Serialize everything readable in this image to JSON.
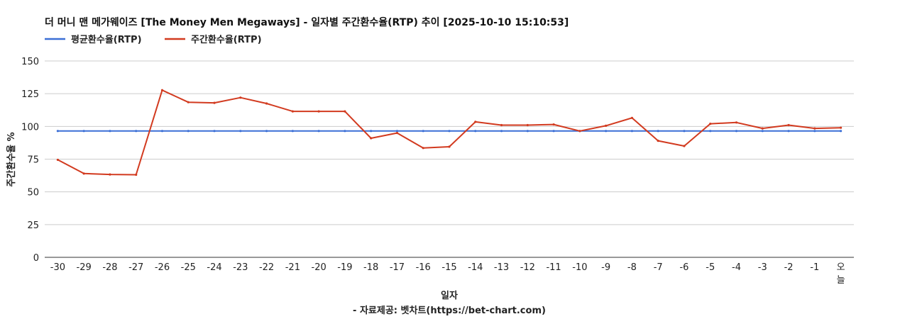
{
  "chart_data": {
    "type": "line",
    "title": "더 머니 맨 메가웨이즈 [The Money Men Megaways] - 일자별 주간환수율(RTP) 추이 [2025-10-10 15:10:53]",
    "xlabel": "일자",
    "ylabel": "주간환수율 %",
    "source": "- 자료제공: 벳차트(https://bet-chart.com)",
    "ylim": [
      0,
      150
    ],
    "yticks": [
      "0",
      "25",
      "50",
      "75",
      "100",
      "125",
      "150"
    ],
    "categories": [
      "-30",
      "-29",
      "-28",
      "-27",
      "-26",
      "-25",
      "-24",
      "-23",
      "-22",
      "-21",
      "-20",
      "-19",
      "-18",
      "-17",
      "-16",
      "-15",
      "-14",
      "-13",
      "-12",
      "-11",
      "-10",
      "-9",
      "-8",
      "-7",
      "-6",
      "-5",
      "-4",
      "-3",
      "-2",
      "-1",
      "오늘"
    ],
    "grid": true,
    "legend_position": "top-left",
    "series": [
      {
        "name": "평균환수율(RTP)",
        "color": "#3b6fd6",
        "values": [
          96.5,
          96.5,
          96.5,
          96.5,
          96.5,
          96.5,
          96.5,
          96.5,
          96.5,
          96.5,
          96.5,
          96.5,
          96.5,
          96.5,
          96.5,
          96.5,
          96.5,
          96.5,
          96.5,
          96.5,
          96.5,
          96.5,
          96.5,
          96.5,
          96.5,
          96.5,
          96.5,
          96.5,
          96.5,
          96.5,
          96.5
        ]
      },
      {
        "name": "주간환수율(RTP)",
        "color": "#d23a1f",
        "values": [
          74.5,
          64,
          63.3,
          63.1,
          127.7,
          118.5,
          118,
          122,
          117.5,
          111.5,
          111.5,
          111.5,
          91,
          95,
          83.5,
          84.5,
          103.5,
          101,
          101,
          101.5,
          96.5,
          100.5,
          106.5,
          89,
          85,
          102,
          103,
          98.5,
          101,
          98.5,
          99
        ]
      }
    ]
  }
}
